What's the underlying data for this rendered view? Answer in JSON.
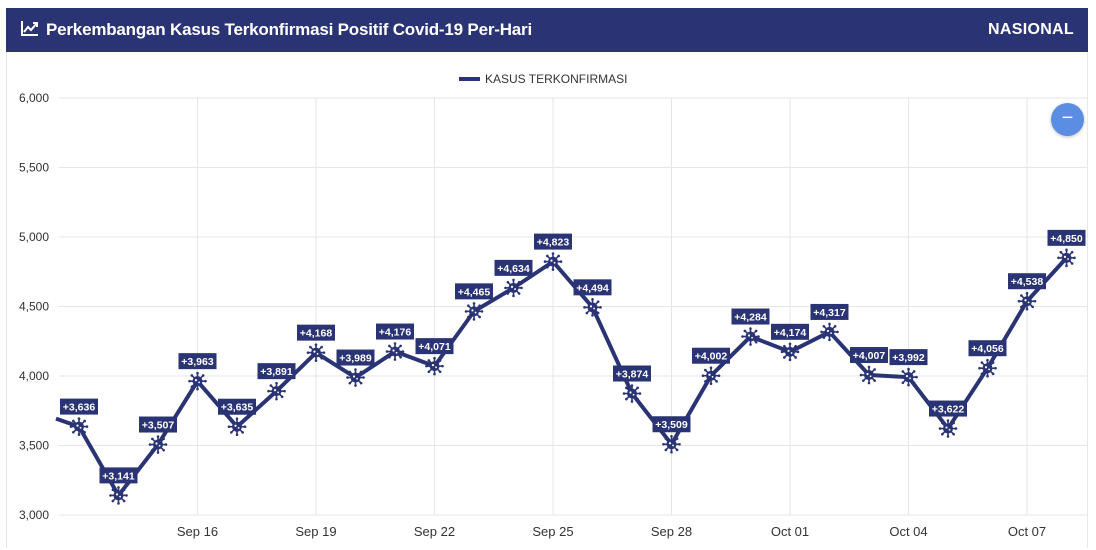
{
  "header": {
    "title": "Perkembangan Kasus Terkonfirmasi Positif Covid-19 Per-Hari",
    "badge": "NASIONAL",
    "icon": "trend-chart-icon"
  },
  "zoom_button": {
    "label": "−",
    "icon": "minus-icon"
  },
  "colors": {
    "header_bg": "#2a3474",
    "series": "#2a3474",
    "label_bg": "#2a3474",
    "grid": "#e6e6e6",
    "zoom_button": "#5b8de2"
  },
  "chart_data": {
    "type": "line",
    "title": "",
    "xlabel": "",
    "ylabel": "",
    "ylim": [
      3000,
      6000
    ],
    "yticks": [
      3000,
      3500,
      4000,
      4500,
      5000,
      5500,
      6000
    ],
    "ytick_labels": [
      "3,000",
      "3,500",
      "4,000",
      "4,500",
      "5,000",
      "5,500",
      "6,000"
    ],
    "x_tick_labels": [
      "Sep 16",
      "Sep 19",
      "Sep 22",
      "Sep 25",
      "Sep 28",
      "Oct 01",
      "Oct 04",
      "Oct 07"
    ],
    "grid": true,
    "legend_position": "top-center",
    "x": [
      "Sep 13",
      "Sep 14",
      "Sep 15",
      "Sep 16",
      "Sep 17",
      "Sep 18",
      "Sep 19",
      "Sep 20",
      "Sep 21",
      "Sep 22",
      "Sep 23",
      "Sep 24",
      "Sep 25",
      "Sep 26",
      "Sep 27",
      "Sep 28",
      "Sep 29",
      "Sep 30",
      "Oct 01",
      "Oct 02",
      "Oct 03",
      "Oct 04",
      "Oct 05",
      "Oct 06",
      "Oct 07",
      "Oct 08"
    ],
    "series": [
      {
        "name": "KASUS TERKONFIRMASI",
        "values": [
          3636,
          3141,
          3507,
          3963,
          3635,
          3891,
          4168,
          3989,
          4176,
          4071,
          4465,
          4634,
          4823,
          4494,
          3874,
          3509,
          4002,
          4284,
          4174,
          4317,
          4007,
          3992,
          3622,
          4056,
          4538,
          4850
        ],
        "labels": [
          "+3,636",
          "+3,141",
          "+3,507",
          "+3,963",
          "+3,635",
          "+3,891",
          "+4,168",
          "+3,989",
          "+4,176",
          "+4,071",
          "+4,465",
          "+4,634",
          "+4,823",
          "+4,494",
          "+3,874",
          "+3,509",
          "+4,002",
          "+4,284",
          "+4,174",
          "+4,317",
          "+4,007",
          "+3,992",
          "+3,622",
          "+4,056",
          "+4,538",
          "+4,850"
        ],
        "marker_icon": "virus-icon"
      }
    ]
  }
}
